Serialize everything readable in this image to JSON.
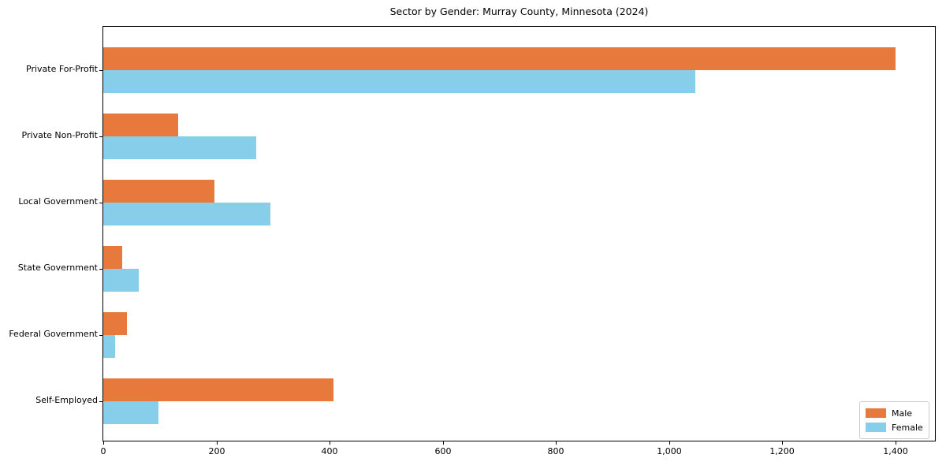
{
  "chart_data": {
    "type": "bar",
    "orientation": "horizontal",
    "title": "Sector by Gender: Murray County, Minnesota (2024)",
    "xlabel": "",
    "ylabel": "",
    "categories": [
      "Private For-Profit",
      "Private Non-Profit",
      "Local Government",
      "State Government",
      "Federal Government",
      "Self-Employed"
    ],
    "series": [
      {
        "name": "Male",
        "color": "#E8793C",
        "values": [
          1400,
          132,
          197,
          34,
          42,
          407
        ]
      },
      {
        "name": "Female",
        "color": "#87CEEB",
        "values": [
          1047,
          270,
          296,
          63,
          21,
          97
        ]
      }
    ],
    "xlim": [
      0,
      1470
    ],
    "xticks": [
      0,
      200,
      400,
      600,
      800,
      1000,
      1200,
      1400
    ],
    "xtick_labels": [
      "0",
      "200",
      "400",
      "600",
      "800",
      "1,000",
      "1,200",
      "1,400"
    ],
    "grid": false,
    "legend_position": "lower right"
  },
  "colors": {
    "male": "#E8793C",
    "female": "#87CEEB",
    "spine": "#000000",
    "legend_border": "#cccccc",
    "text": "#000000"
  },
  "legend": {
    "items": [
      {
        "label": "Male"
      },
      {
        "label": "Female"
      }
    ]
  }
}
